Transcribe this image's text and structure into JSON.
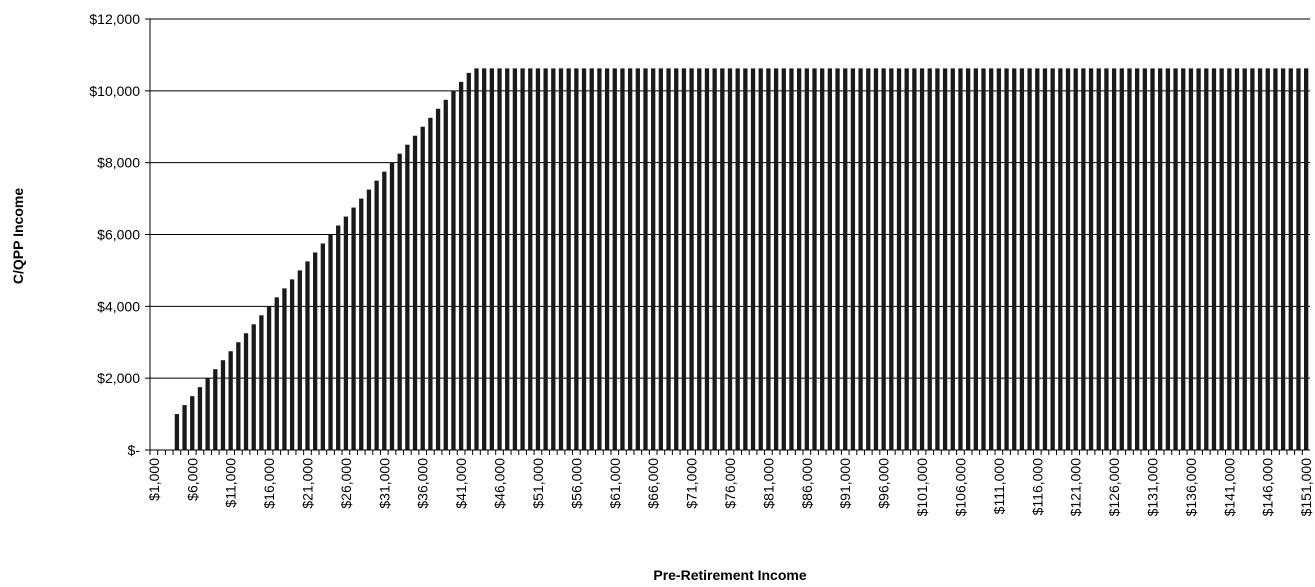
{
  "chart_data": {
    "type": "bar",
    "x_label": "Pre-Retirement Income",
    "y_label": "C/QPP Income",
    "color": "#1a1a1a",
    "grid": true,
    "ylim": [
      0,
      12000
    ],
    "yticks": [
      {
        "value": 0,
        "label": "$-"
      },
      {
        "value": 2000,
        "label": "$2,000"
      },
      {
        "value": 4000,
        "label": "$4,000"
      },
      {
        "value": 6000,
        "label": "$6,000"
      },
      {
        "value": 8000,
        "label": "$8,000"
      },
      {
        "value": 10000,
        "label": "$10,000"
      },
      {
        "value": 12000,
        "label": "$12,000"
      }
    ],
    "categories": [
      "$1,000",
      null,
      null,
      null,
      null,
      "$6,000",
      null,
      null,
      null,
      null,
      "$11,000",
      null,
      null,
      null,
      null,
      "$16,000",
      null,
      null,
      null,
      null,
      "$21,000",
      null,
      null,
      null,
      null,
      "$26,000",
      null,
      null,
      null,
      null,
      "$31,000",
      null,
      null,
      null,
      null,
      "$36,000",
      null,
      null,
      null,
      null,
      "$41,000",
      null,
      null,
      null,
      null,
      "$46,000",
      null,
      null,
      null,
      null,
      "$51,000",
      null,
      null,
      null,
      null,
      "$56,000",
      null,
      null,
      null,
      null,
      "$61,000",
      null,
      null,
      null,
      null,
      "$66,000",
      null,
      null,
      null,
      null,
      "$71,000",
      null,
      null,
      null,
      null,
      "$76,000",
      null,
      null,
      null,
      null,
      "$81,000",
      null,
      null,
      null,
      null,
      "$86,000",
      null,
      null,
      null,
      null,
      "$91,000",
      null,
      null,
      null,
      null,
      "$96,000",
      null,
      null,
      null,
      null,
      "$101,000",
      null,
      null,
      null,
      null,
      "$106,000",
      null,
      null,
      null,
      null,
      "$111,000",
      null,
      null,
      null,
      null,
      "$116,000",
      null,
      null,
      null,
      null,
      "$121,000",
      null,
      null,
      null,
      null,
      "$126,000",
      null,
      null,
      null,
      null,
      "$131,000",
      null,
      null,
      null,
      null,
      "$136,000",
      null,
      null,
      null,
      null,
      "$141,000",
      null,
      null,
      null,
      null,
      "$146,000",
      null,
      null,
      null,
      null,
      "$151,000"
    ],
    "values": [
      0,
      0,
      0,
      1000,
      1250,
      1500,
      1750,
      2000,
      2250,
      2500,
      2750,
      3000,
      3250,
      3500,
      3750,
      4000,
      4250,
      4500,
      4750,
      5000,
      5250,
      5500,
      5750,
      6000,
      6250,
      6500,
      6750,
      7000,
      7250,
      7500,
      7750,
      8000,
      8250,
      8500,
      8750,
      9000,
      9250,
      9500,
      9750,
      10000,
      10250,
      10500,
      10625,
      10625,
      10625,
      10625,
      10625,
      10625,
      10625,
      10625,
      10625,
      10625,
      10625,
      10625,
      10625,
      10625,
      10625,
      10625,
      10625,
      10625,
      10625,
      10625,
      10625,
      10625,
      10625,
      10625,
      10625,
      10625,
      10625,
      10625,
      10625,
      10625,
      10625,
      10625,
      10625,
      10625,
      10625,
      10625,
      10625,
      10625,
      10625,
      10625,
      10625,
      10625,
      10625,
      10625,
      10625,
      10625,
      10625,
      10625,
      10625,
      10625,
      10625,
      10625,
      10625,
      10625,
      10625,
      10625,
      10625,
      10625,
      10625,
      10625,
      10625,
      10625,
      10625,
      10625,
      10625,
      10625,
      10625,
      10625,
      10625,
      10625,
      10625,
      10625,
      10625,
      10625,
      10625,
      10625,
      10625,
      10625,
      10625,
      10625,
      10625,
      10625,
      10625,
      10625,
      10625,
      10625,
      10625,
      10625,
      10625,
      10625,
      10625,
      10625,
      10625,
      10625,
      10625,
      10625,
      10625,
      10625,
      10625,
      10625,
      10625,
      10625,
      10625,
      10625,
      10625,
      10625,
      10625,
      10625,
      10625
    ]
  }
}
